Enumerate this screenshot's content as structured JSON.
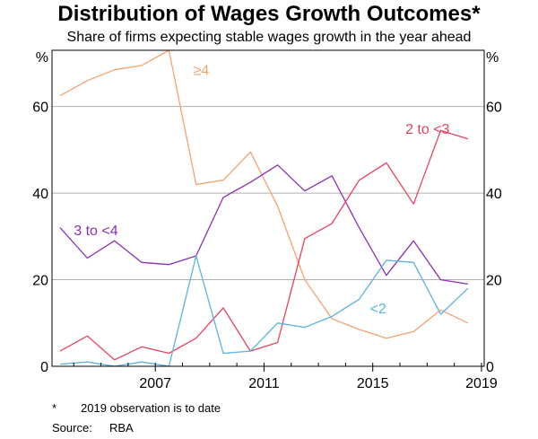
{
  "title": "Distribution of Wages Growth Outcomes*",
  "subtitle": "Share of firms expecting stable wages growth in the year ahead",
  "footnote": {
    "mark": "*",
    "text": "2019 observation is to date"
  },
  "source": {
    "label": "Source:",
    "value": "RBA"
  },
  "chart_data": {
    "type": "line",
    "y_unit_left": "%",
    "y_unit_right": "%",
    "ylim": [
      0,
      73
    ],
    "yticks": [
      0,
      20,
      40,
      60
    ],
    "xlim": [
      2003.7,
      2019.6
    ],
    "xticks": [
      {
        "label": "2007",
        "value": 2007.5
      },
      {
        "label": "2011",
        "value": 2011.5
      },
      {
        "label": "2015",
        "value": 2015.5
      },
      {
        "label": "2019",
        "value": 2019.5
      }
    ],
    "x": [
      2004,
      2005,
      2006,
      2007,
      2008,
      2009,
      2010,
      2011,
      2012,
      2013,
      2014,
      2015,
      2016,
      2017,
      2018,
      2019
    ],
    "grid": true,
    "series": [
      {
        "name": "≥4",
        "color": "#f5a26e",
        "label_pos": [
          2008.9,
          68.5
        ],
        "values": [
          62.5,
          66,
          68.5,
          69.5,
          73,
          42,
          43,
          49.5,
          37,
          20,
          11,
          8.5,
          6.5,
          8,
          13,
          10
        ]
      },
      {
        "name": "3 to <4",
        "color": "#8b2fb2",
        "label_pos": [
          2004.5,
          31.5
        ],
        "values": [
          32,
          25,
          29,
          24,
          23.5,
          25.5,
          39,
          42.5,
          46.5,
          40.5,
          44,
          32,
          21,
          29,
          20,
          19
        ]
      },
      {
        "name": "2 to <3",
        "color": "#e9405e",
        "label_pos": [
          2016.7,
          55
        ],
        "values": [
          3.5,
          7,
          1.5,
          4.5,
          3,
          6.5,
          13.5,
          3.5,
          5.5,
          29.5,
          33,
          43,
          47,
          37.5,
          54.5,
          52.5
        ]
      },
      {
        "name": "<2",
        "color": "#5ab3dc",
        "label_pos": [
          2015.4,
          13.5
        ],
        "values": [
          0.5,
          1,
          0,
          1,
          0,
          25.5,
          3,
          3.5,
          10,
          9,
          11.5,
          15.5,
          24.5,
          24,
          12,
          18
        ]
      }
    ]
  }
}
